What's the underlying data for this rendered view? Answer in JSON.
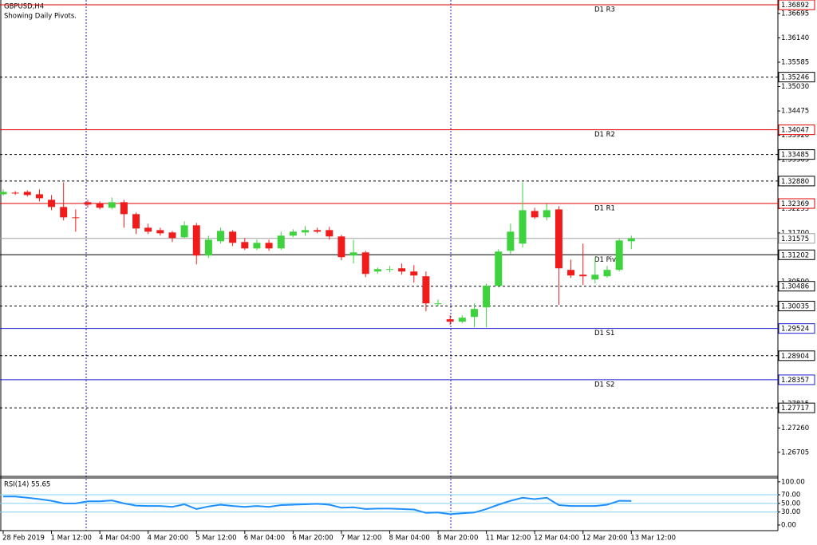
{
  "chart_data": {
    "type": "candlestick",
    "title": "GBPUSD,H4",
    "subtitle": "Showing Daily Pivots.",
    "categories": [
      "28 Feb 2019",
      null,
      null,
      null,
      "1 Mar 12:00",
      null,
      null,
      null,
      "4 Mar 04:00",
      null,
      null,
      null,
      "4 Mar 20:00",
      null,
      null,
      null,
      "5 Mar 12:00",
      null,
      null,
      null,
      "6 Mar 04:00",
      null,
      null,
      null,
      "6 Mar 20:00",
      null,
      null,
      null,
      "7 Mar 12:00",
      null,
      null,
      null,
      "8 Mar 04:00",
      null,
      null,
      null,
      "8 Mar 20:00",
      null,
      null,
      null,
      "11 Mar 12:00",
      null,
      null,
      null,
      "12 Mar 04:00",
      null,
      null,
      null,
      "12 Mar 20:00",
      null,
      null,
      null,
      "13 Mar 12:00"
    ],
    "open": [
      1.3258,
      1.32616,
      1.32634,
      1.3258,
      1.32453,
      1.3229,
      1.32054,
      1.32399,
      1.32362,
      1.32272,
      1.32399,
      1.32127,
      1.31818,
      1.31764,
      1.3171,
      1.31601,
      1.31873,
      1.31184,
      1.3151,
      1.31728,
      1.31492,
      1.31347,
      1.31474,
      1.31347,
      1.31637,
      1.3171,
      1.31764,
      1.31764,
      1.31619,
      1.31184,
      1.31256,
      1.30821,
      1.30858,
      1.30894,
      1.30821,
      1.30713,
      1.30078,
      1.29734,
      1.29679,
      1.29788,
      1.30006,
      1.30495,
      1.31293,
      1.31456,
      1.32199,
      1.32054,
      1.32235,
      1.30858,
      1.30749,
      1.3064,
      1.30713,
      1.30858,
      1.3151
    ],
    "high": [
      1.32689,
      1.32652,
      1.3267,
      1.32689,
      1.32562,
      1.32852,
      1.32235,
      1.32453,
      1.32417,
      1.32507,
      1.32453,
      1.32163,
      1.31909,
      1.31818,
      1.31746,
      1.31963,
      1.31927,
      1.31637,
      1.31818,
      1.31764,
      1.31583,
      1.31546,
      1.31546,
      1.31728,
      1.31782,
      1.31855,
      1.31818,
      1.31837,
      1.31655,
      1.31546,
      1.31293,
      1.30912,
      1.30948,
      1.31003,
      1.30966,
      1.30821,
      1.30187,
      1.29824,
      1.29824,
      1.30096,
      1.30549,
      1.31329,
      1.31909,
      1.32852,
      1.32272,
      1.32362,
      1.32308,
      1.31093,
      1.31456,
      1.31148,
      1.30948,
      1.31565,
      1.31637
    ],
    "low": [
      1.32544,
      1.32562,
      1.32525,
      1.32417,
      1.32217,
      1.31982,
      1.31728,
      1.32272,
      1.32235,
      1.32235,
      1.31818,
      1.31673,
      1.31673,
      1.31637,
      1.31492,
      1.31583,
      1.30984,
      1.31129,
      1.31456,
      1.31401,
      1.31311,
      1.31311,
      1.31293,
      1.31311,
      1.31601,
      1.31637,
      1.31691,
      1.31546,
      1.31075,
      1.31003,
      1.30694,
      1.30767,
      1.30803,
      1.30749,
      1.30567,
      1.29915,
      1.30024,
      1.29607,
      1.29643,
      1.29552,
      1.29552,
      1.30459,
      1.3122,
      1.31365,
      1.32018,
      1.31982,
      1.3006,
      1.30676,
      1.30513,
      1.30549,
      1.30676,
      1.30821,
      1.31329
    ],
    "close": [
      1.32634,
      1.32598,
      1.32562,
      1.32489,
      1.3229,
      1.32054,
      1.32036,
      1.32344,
      1.32272,
      1.32399,
      1.32127,
      1.318,
      1.31728,
      1.31691,
      1.31583,
      1.31873,
      1.31184,
      1.31546,
      1.31746,
      1.31474,
      1.31347,
      1.31474,
      1.31347,
      1.31637,
      1.31728,
      1.31764,
      1.31728,
      1.31619,
      1.31148,
      1.31256,
      1.30767,
      1.30876,
      1.30876,
      1.30821,
      1.30731,
      1.30096,
      1.30096,
      1.29679,
      1.2977,
      1.29969,
      1.30495,
      1.31275,
      1.31728,
      1.32217,
      1.32054,
      1.32217,
      1.30894,
      1.30731,
      1.30713,
      1.30749,
      1.30858,
      1.31528,
      1.31575
    ],
    "up_color": "#3fd23f",
    "down_color": "#f01c1c",
    "ylim": [
      1.26158,
      1.36983
    ],
    "yticks": [
      {
        "value": 1.36695,
        "label": "1.36695"
      },
      {
        "value": 1.3614,
        "label": "1.36140"
      },
      {
        "value": 1.35585,
        "label": "1.35585"
      },
      {
        "value": 1.3503,
        "label": "1.35030"
      },
      {
        "value": 1.34475,
        "label": "1.34475"
      },
      {
        "value": 1.3392,
        "label": "1.33920"
      },
      {
        "value": 1.33365,
        "label": "1.33365"
      },
      {
        "value": 1.3281,
        "label": "1.32810"
      },
      {
        "value": 1.32255,
        "label": "1.32255"
      },
      {
        "value": 1.317,
        "label": "1.31700"
      },
      {
        "value": 1.31145,
        "label": "1.31145"
      },
      {
        "value": 1.3059,
        "label": "1.30590"
      },
      {
        "value": 1.30035,
        "label": "1.30035"
      },
      {
        "value": 1.2948,
        "label": "1.29480"
      },
      {
        "value": 1.28925,
        "label": "1.28925"
      },
      {
        "value": 1.2837,
        "label": "1.28370"
      },
      {
        "value": 1.27815,
        "label": "1.27815"
      },
      {
        "value": 1.2726,
        "label": "1.27260"
      },
      {
        "value": 1.26705,
        "label": "1.26705"
      }
    ],
    "levels": [
      {
        "value": 1.36892,
        "label": "1.36892",
        "name": "D1 R3",
        "color": "#e00000",
        "style": "solid"
      },
      {
        "value": 1.35246,
        "label": "1.35246",
        "color": "#000000",
        "style": "dashed"
      },
      {
        "value": 1.34047,
        "label": "1.34047",
        "name": "D1 R2",
        "color": "#e00000",
        "style": "solid"
      },
      {
        "value": 1.33485,
        "label": "1.33485",
        "color": "#000000",
        "style": "dashed"
      },
      {
        "value": 1.3288,
        "label": "1.32880",
        "color": "#000000",
        "style": "dashed"
      },
      {
        "value": 1.32369,
        "label": "1.32369",
        "name": "D1 R1",
        "color": "#e00000",
        "style": "solid"
      },
      {
        "value": 1.31575,
        "label": "1.31575",
        "color": "#a0a0a0",
        "style": "solid"
      },
      {
        "value": 1.31202,
        "label": "1.31202",
        "name": "D1 Pivot",
        "color": "#000000",
        "style": "solid"
      },
      {
        "value": 1.30486,
        "label": "1.30486",
        "color": "#000000",
        "style": "dashed"
      },
      {
        "value": 1.30035,
        "label": "1.30035",
        "color": "#000000",
        "style": "dashed"
      },
      {
        "value": 1.29524,
        "label": "1.29524",
        "name": "D1 S1",
        "color": "#1c1ccc",
        "style": "solid"
      },
      {
        "value": 1.28904,
        "label": "1.28904",
        "color": "#000000",
        "style": "dashed"
      },
      {
        "value": 1.28357,
        "label": "1.28357",
        "name": "D1 S2",
        "color": "#1c1ccc",
        "style": "solid"
      },
      {
        "value": 1.27717,
        "label": "1.27717",
        "color": "#000000",
        "style": "dashed"
      }
    ],
    "indicator": {
      "type": "line",
      "title": "RSI(14) 55.65",
      "color": "#1e8fff",
      "values": [
        66,
        66,
        63,
        60,
        56,
        50,
        50,
        55,
        55,
        57,
        50,
        45,
        44,
        44,
        42,
        48,
        37,
        43,
        47,
        44,
        42,
        44,
        42,
        46,
        47,
        48,
        49,
        47,
        40,
        41,
        37,
        38,
        38,
        37,
        36,
        28,
        29,
        25,
        27,
        29,
        37,
        47,
        56,
        63,
        60,
        63,
        46,
        44,
        44,
        44,
        47,
        56,
        55.65
      ],
      "ylim": [
        -13,
        107
      ],
      "yticks": [
        {
          "value": 100,
          "label": "100.00"
        },
        {
          "value": 70,
          "label": "70.00"
        },
        {
          "value": 50,
          "label": "50.00"
        },
        {
          "value": 30,
          "label": "30.00"
        },
        {
          "value": 0,
          "label": "0.00"
        }
      ],
      "levels": [
        70,
        50,
        30
      ],
      "level_color": "#7fd0f0"
    }
  }
}
